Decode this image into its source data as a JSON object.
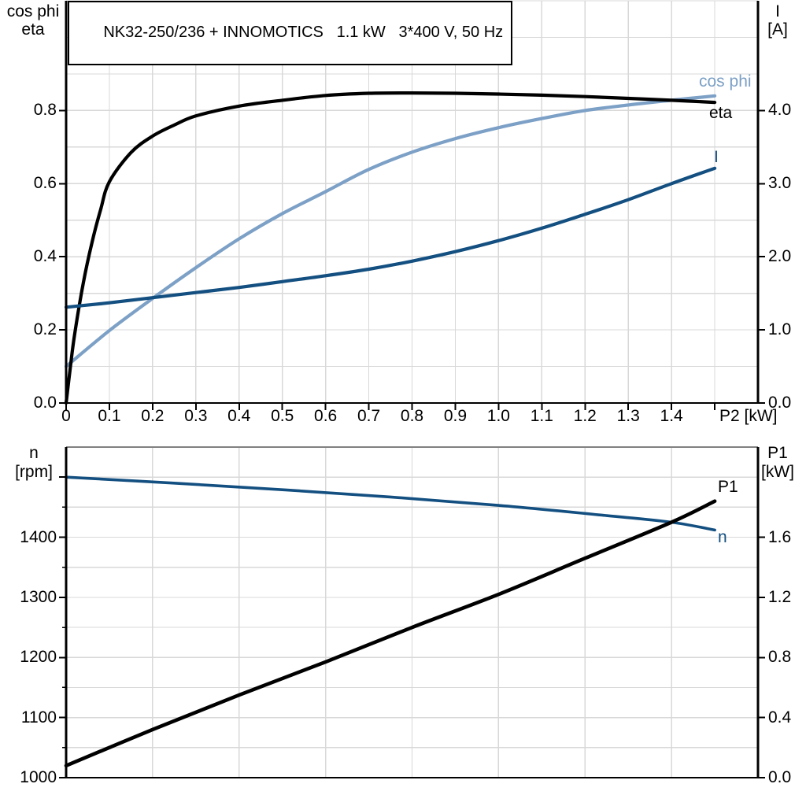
{
  "title_box": {
    "text": "NK32-250/236 + INNOMOTICS   1.1 kW   3*400 V, 50 Hz"
  },
  "colors": {
    "grid": "#D8D8D8",
    "axis": "#000000",
    "cos_phi": "#7CA0C6",
    "current_blue": "#134F80",
    "black_curve": "#000000",
    "bottom_top_border": "#808080",
    "background": "#FFFFFF"
  },
  "chart_data": [
    {
      "id": "motor-electrical-curves",
      "type": "line",
      "grid": true,
      "legend_position": "end-of-curve",
      "x_axis": {
        "label": "P2 [kW]",
        "min": 0,
        "max": 1.6,
        "grid_step": 0.1,
        "tick_values": [
          0,
          0.1,
          0.2,
          0.3,
          0.4,
          0.5,
          0.6,
          0.7,
          0.8,
          0.9,
          1.0,
          1.1,
          1.2,
          1.3,
          1.4,
          1.5
        ],
        "tick_labels": [
          "0",
          "0.1",
          "0.2",
          "0.3",
          "0.4",
          "0.5",
          "0.6",
          "0.7",
          "0.8",
          "0.9",
          "1.0",
          "1.1",
          "1.2",
          "1.3",
          "1.4",
          ""
        ]
      },
      "y_left": {
        "title_lines": [
          "cos phi",
          "eta"
        ],
        "min": 0,
        "max": 1.1,
        "grid_step": 0.1,
        "tick_values": [
          0,
          0.2,
          0.4,
          0.6,
          0.8
        ],
        "tick_labels": [
          "0.0",
          "0.2",
          "0.4",
          "0.6",
          "0.8"
        ],
        "minor_tick_values": []
      },
      "y_right": {
        "title_lines": [
          "I",
          "[A]"
        ],
        "min": 0,
        "max": 5.5,
        "tick_values": [
          0,
          1,
          2,
          3,
          4
        ],
        "tick_labels": [
          "0.0",
          "1.0",
          "2.0",
          "3.0",
          "4.0"
        ],
        "minor_tick_values": []
      },
      "series": [
        {
          "name": "cos phi",
          "axis": "left",
          "color": "#7CA0C6",
          "x": [
            0,
            0.1,
            0.2,
            0.3,
            0.4,
            0.5,
            0.6,
            0.7,
            0.8,
            0.9,
            1.0,
            1.1,
            1.2,
            1.3,
            1.4,
            1.5
          ],
          "y": [
            0.1,
            0.198,
            0.286,
            0.37,
            0.449,
            0.518,
            0.578,
            0.639,
            0.686,
            0.723,
            0.753,
            0.778,
            0.8,
            0.815,
            0.828,
            0.84
          ]
        },
        {
          "name": "eta",
          "axis": "left",
          "color": "#000000",
          "x": [
            0,
            0.01,
            0.02,
            0.04,
            0.06,
            0.08,
            0.1,
            0.15,
            0.2,
            0.25,
            0.3,
            0.4,
            0.5,
            0.6,
            0.7,
            0.8,
            0.9,
            1.0,
            1.1,
            1.2,
            1.3,
            1.4,
            1.5
          ],
          "y": [
            0,
            0.1,
            0.19,
            0.33,
            0.44,
            0.53,
            0.605,
            0.685,
            0.73,
            0.76,
            0.785,
            0.812,
            0.828,
            0.841,
            0.847,
            0.848,
            0.847,
            0.845,
            0.842,
            0.838,
            0.833,
            0.828,
            0.822
          ]
        },
        {
          "name": "I",
          "axis": "right",
          "color": "#134F80",
          "x": [
            0,
            0.1,
            0.2,
            0.3,
            0.4,
            0.5,
            0.6,
            0.7,
            0.8,
            0.9,
            1.0,
            1.1,
            1.2,
            1.3,
            1.4,
            1.5
          ],
          "y": [
            1.31,
            1.37,
            1.44,
            1.51,
            1.58,
            1.66,
            1.74,
            1.83,
            1.94,
            2.07,
            2.22,
            2.39,
            2.58,
            2.78,
            3.0,
            3.21
          ]
        }
      ]
    },
    {
      "id": "motor-mechanical-curves",
      "type": "line",
      "grid": true,
      "legend_position": "end-of-curve",
      "x_axis": {
        "label": "",
        "min": 0,
        "max": 1.6,
        "grid_step": 0.2,
        "tick_values": [],
        "tick_labels": []
      },
      "y_left": {
        "title_lines": [
          "n",
          "[rpm]"
        ],
        "min": 1000,
        "max": 1550,
        "grid_step": 50,
        "tick_values": [
          1000,
          1100,
          1200,
          1300,
          1400,
          1500
        ],
        "tick_labels": [
          "1000",
          "1100",
          "1200",
          "1300",
          "1400",
          ""
        ],
        "minor_tick_values": [
          1050,
          1150,
          1250,
          1350,
          1450
        ]
      },
      "y_right": {
        "title_lines": [
          "P1",
          "[kW]"
        ],
        "min": 0,
        "max": 2.2,
        "tick_values": [
          0,
          0.4,
          0.8,
          1.2,
          1.6
        ],
        "tick_labels": [
          "0.0",
          "0.4",
          "0.8",
          "1.2",
          "1.6"
        ],
        "minor_tick_values": []
      },
      "series": [
        {
          "name": "n",
          "axis": "left",
          "color": "#134F80",
          "x": [
            0,
            0.25,
            0.5,
            0.75,
            1.0,
            1.25,
            1.4,
            1.5
          ],
          "y": [
            1500,
            1490,
            1479,
            1467,
            1453,
            1436,
            1425,
            1412
          ]
        },
        {
          "name": "P1",
          "axis": "right",
          "color": "#000000",
          "x": [
            0,
            0.2,
            0.4,
            0.6,
            0.8,
            1.0,
            1.2,
            1.4,
            1.5
          ],
          "y": [
            0.08,
            0.32,
            0.55,
            0.77,
            1.0,
            1.22,
            1.46,
            1.7,
            1.84
          ]
        }
      ]
    }
  ]
}
